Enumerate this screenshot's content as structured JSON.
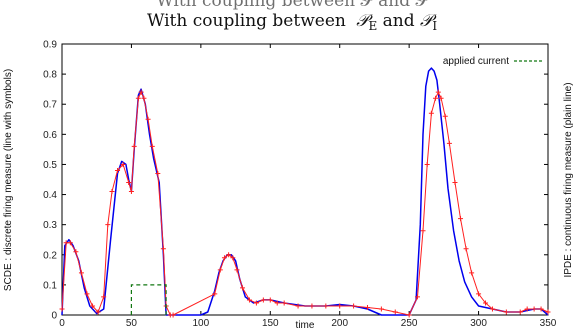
{
  "chart_data": {
    "type": "line",
    "title": "With coupling between",
    "title_math": [
      {
        "text": "𝒫",
        "sub": "E"
      },
      {
        "text": " and ",
        "sub": ""
      },
      {
        "text": "𝒫",
        "sub": "I"
      }
    ],
    "xlabel": "time",
    "ylabel_left": "SCDE : discrete firing measure (line with symbols)",
    "ylabel_right": "IPDE : continuous firing measure (plain line)",
    "xlim": [
      0,
      350
    ],
    "ylim": [
      0,
      0.9
    ],
    "xticks": [
      0,
      50,
      100,
      150,
      200,
      250,
      300,
      350
    ],
    "yticks": [
      0,
      0.1,
      0.2,
      0.3,
      0.4,
      0.5,
      0.6,
      0.7,
      0.8,
      0.9
    ],
    "ytick_labels": [
      "0",
      "0.1",
      "0.2",
      "0.3",
      "0.4",
      "0.5",
      "0.6",
      "0.7",
      "0.8",
      "0.9"
    ],
    "legend": {
      "label": "applied current",
      "position": "top-right"
    },
    "colors": {
      "blue": "#0000ee",
      "red": "#ff2020",
      "green": "#117711"
    },
    "series": [
      {
        "style": "blue-plain",
        "x": [
          0,
          2,
          5,
          8,
          12,
          16,
          20,
          25,
          30,
          35,
          40,
          43,
          46,
          48,
          50,
          52,
          55,
          57,
          60,
          63,
          66,
          70,
          73,
          75,
          78,
          80,
          90,
          100,
          105,
          110,
          113,
          116,
          119,
          122,
          125,
          128,
          132,
          138,
          145,
          150,
          160,
          175,
          190,
          200,
          210,
          220,
          230,
          240,
          250,
          255,
          258,
          260,
          262,
          264,
          266,
          268,
          270,
          272,
          275,
          278,
          282,
          286,
          290,
          295,
          300,
          310,
          320,
          330,
          340,
          345,
          350
        ],
        "y": [
          0,
          0.23,
          0.25,
          0.23,
          0.18,
          0.09,
          0.03,
          0.005,
          0.02,
          0.25,
          0.47,
          0.51,
          0.5,
          0.45,
          0.41,
          0.55,
          0.73,
          0.75,
          0.7,
          0.6,
          0.52,
          0.44,
          0.2,
          0,
          0,
          0,
          0,
          0,
          0.01,
          0.08,
          0.14,
          0.18,
          0.2,
          0.2,
          0.18,
          0.12,
          0.06,
          0.04,
          0.05,
          0.05,
          0.04,
          0.03,
          0.03,
          0.035,
          0.03,
          0.02,
          0,
          0,
          0,
          0.05,
          0.3,
          0.6,
          0.76,
          0.81,
          0.82,
          0.81,
          0.78,
          0.7,
          0.57,
          0.42,
          0.28,
          0.18,
          0.11,
          0.06,
          0.03,
          0.02,
          0.01,
          0.01,
          0.02,
          0.02,
          0
        ]
      },
      {
        "style": "red-symbols",
        "x": [
          0,
          3,
          6,
          10,
          14,
          18,
          22,
          26,
          30,
          33,
          36,
          40,
          44,
          48,
          50,
          52,
          55,
          57,
          59,
          62,
          65,
          69,
          73,
          75,
          78,
          80,
          110,
          114,
          117,
          120,
          123,
          126,
          130,
          135,
          140,
          145,
          150,
          155,
          160,
          170,
          180,
          190,
          200,
          210,
          220,
          230,
          240,
          250,
          256,
          260,
          263,
          266,
          269,
          271,
          273,
          276,
          279,
          283,
          287,
          291,
          295,
          300,
          305,
          310,
          320,
          330,
          335,
          340,
          345,
          350
        ],
        "y": [
          0.02,
          0.24,
          0.24,
          0.21,
          0.14,
          0.07,
          0.03,
          0.01,
          0.06,
          0.3,
          0.41,
          0.48,
          0.5,
          0.44,
          0.41,
          0.56,
          0.72,
          0.74,
          0.72,
          0.65,
          0.56,
          0.47,
          0.22,
          0.03,
          0,
          0,
          0.07,
          0.15,
          0.19,
          0.2,
          0.19,
          0.15,
          0.09,
          0.05,
          0.04,
          0.05,
          0.05,
          0.04,
          0.04,
          0.03,
          0.03,
          0.03,
          0.03,
          0.03,
          0.025,
          0.02,
          0.01,
          0,
          0.06,
          0.28,
          0.5,
          0.67,
          0.72,
          0.74,
          0.72,
          0.66,
          0.57,
          0.44,
          0.32,
          0.22,
          0.14,
          0.07,
          0.04,
          0.02,
          0.01,
          0.01,
          0.02,
          0.02,
          0.02,
          0.01
        ]
      },
      {
        "style": "green-dashed",
        "name": "applied current",
        "x": [
          50,
          50,
          75,
          75
        ],
        "y": [
          0,
          0.1,
          0.1,
          0
        ]
      }
    ]
  }
}
